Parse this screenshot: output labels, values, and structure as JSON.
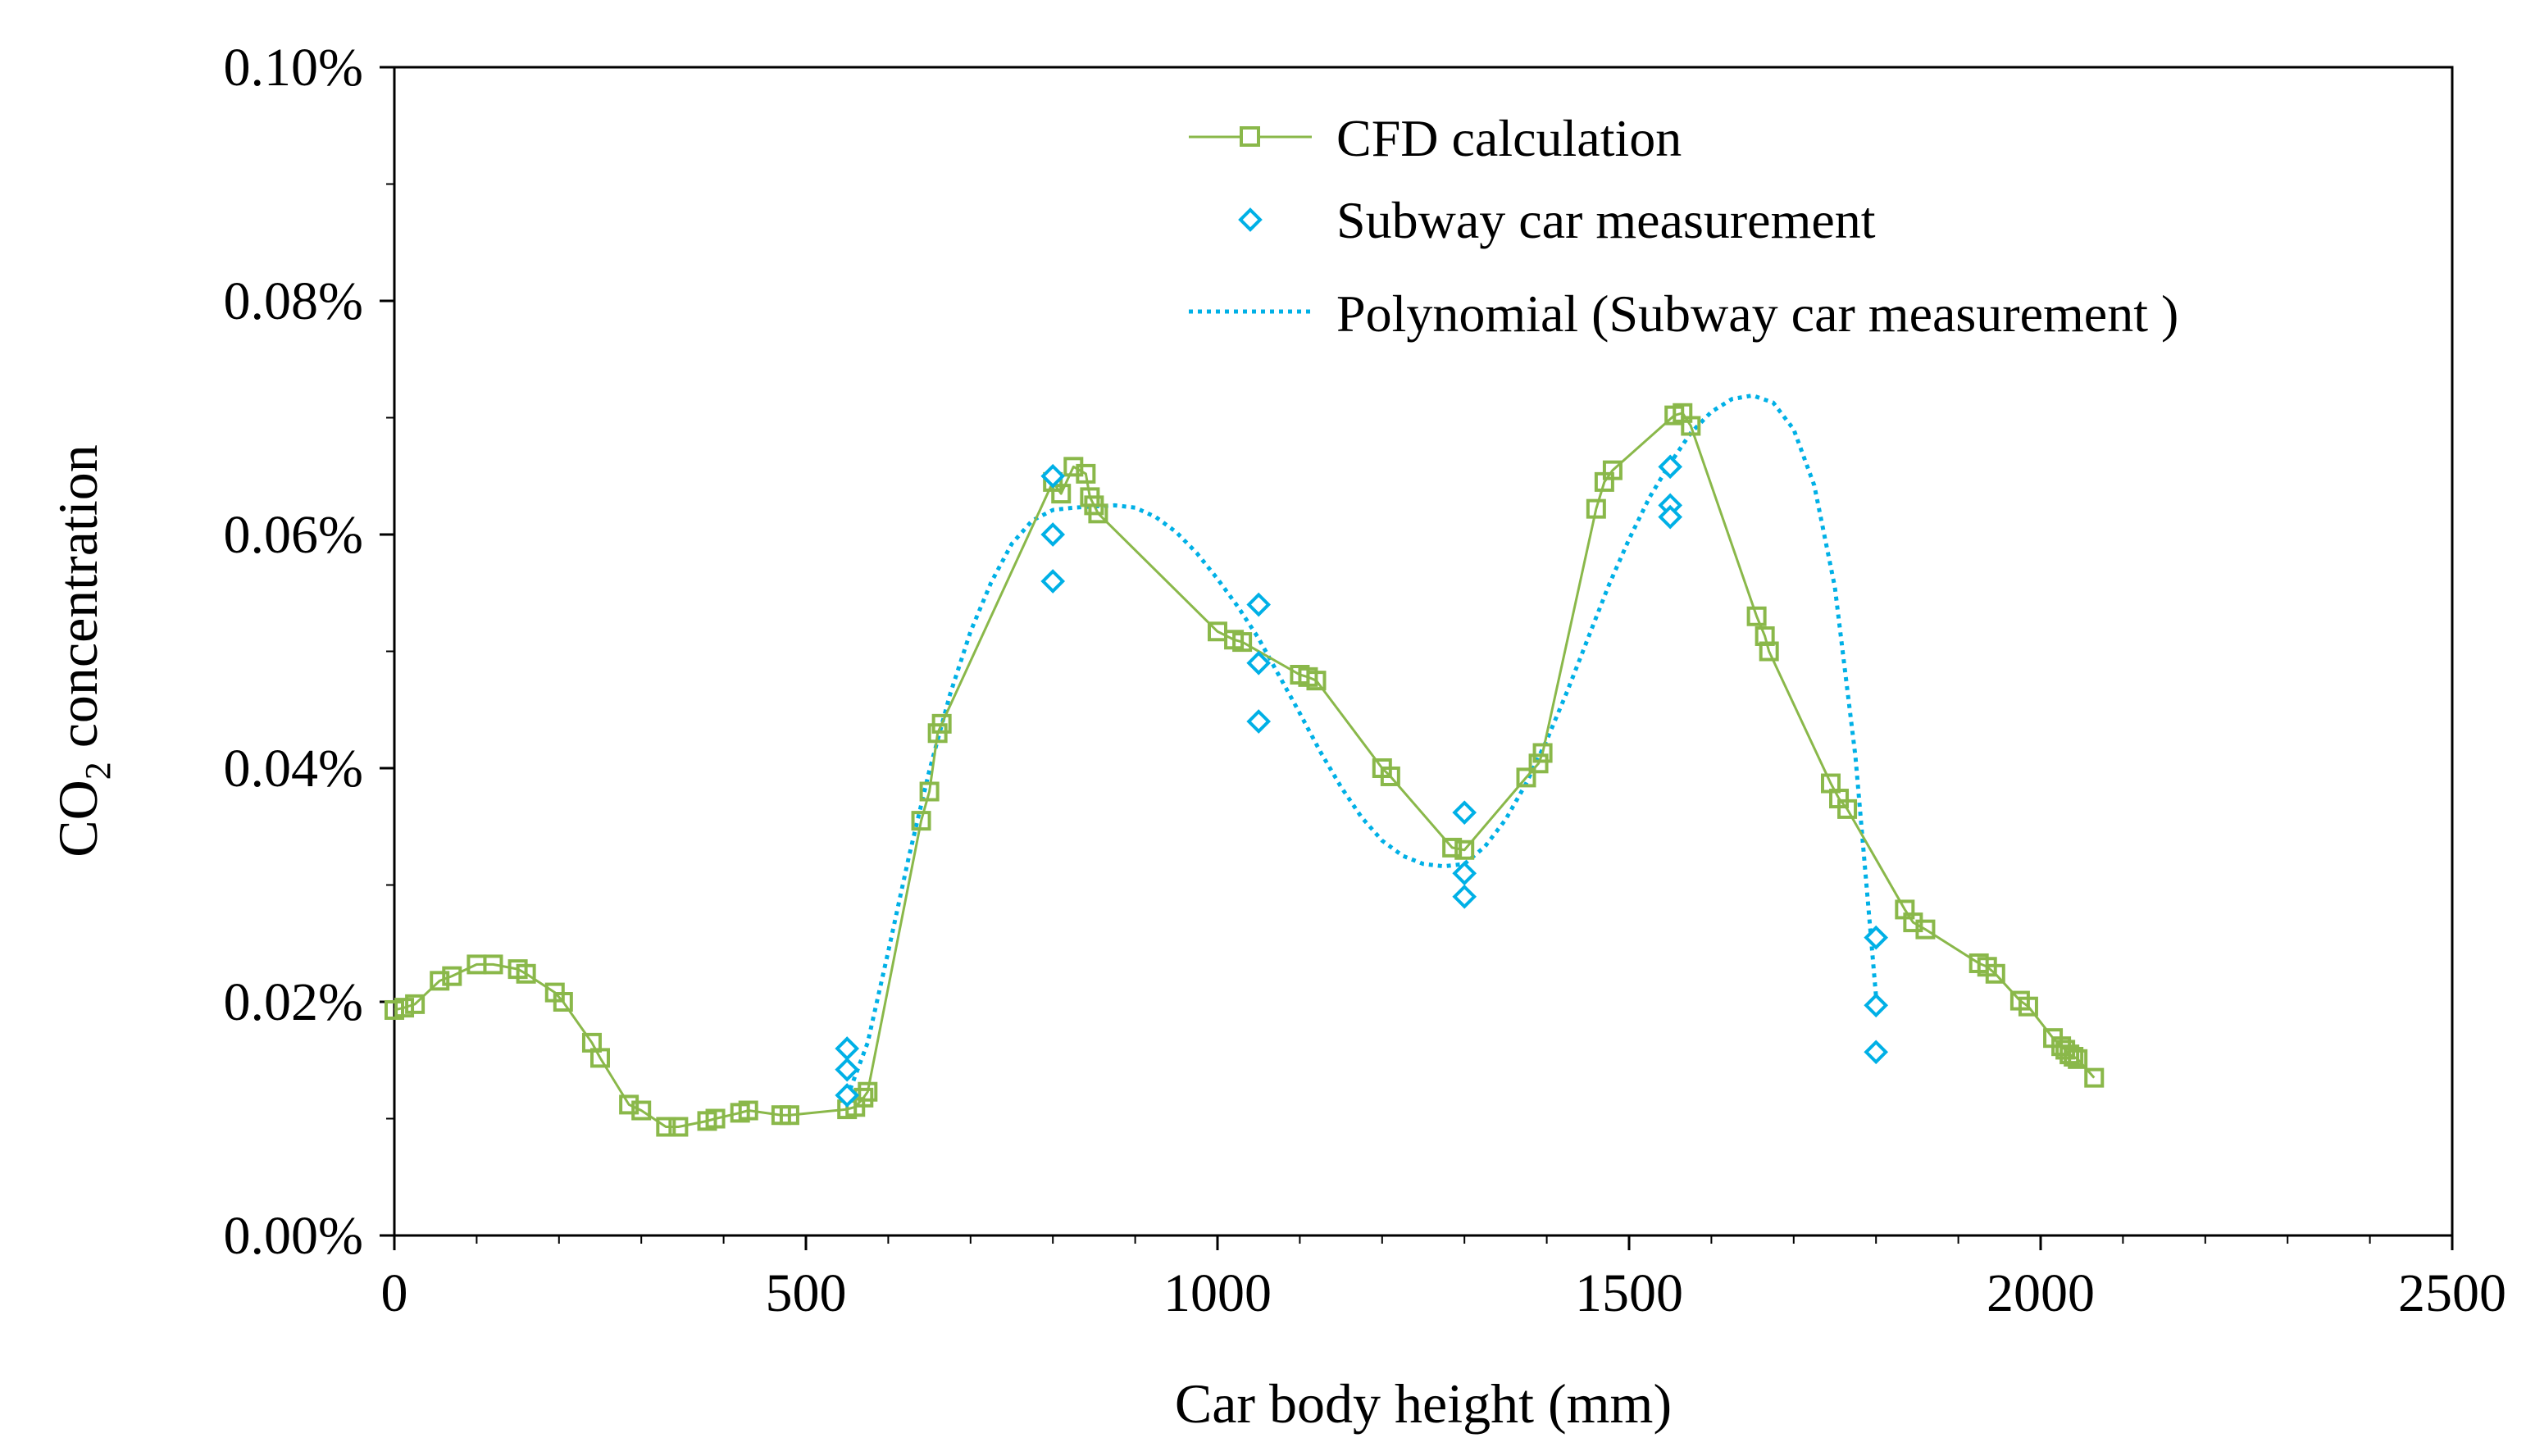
{
  "chart_data": {
    "type": "scatter",
    "title": "",
    "xlabel": "Car body height (mm)",
    "ylabel": "CO",
    "ylabel_subscript": "2",
    "ylabel_suffix": " concentration",
    "xlim": [
      0,
      2500
    ],
    "ylim": [
      0,
      0.001
    ],
    "grid": false,
    "legend_position": "top-right",
    "xticks": [
      0,
      500,
      1000,
      1500,
      2000,
      2500
    ],
    "xtick_labels": [
      "0",
      "500",
      "1000",
      "1500",
      "2000",
      "2500"
    ],
    "yticks": [
      0,
      0.0002,
      0.0004,
      0.0006,
      0.0008,
      0.001
    ],
    "ytick_labels": [
      "0.00%",
      "0.02%",
      "0.04%",
      "0.06%",
      "0.08%",
      "0.10%"
    ],
    "series": [
      {
        "name": "CFD calculation",
        "kind": "line-markers",
        "marker": "square",
        "color": "#8ab84a",
        "x": [
          0,
          12,
          25,
          55,
          70,
          100,
          120,
          150,
          160,
          195,
          205,
          240,
          250,
          285,
          300,
          330,
          345,
          380,
          390,
          420,
          430,
          470,
          480,
          550,
          560,
          570,
          575,
          640,
          650,
          660,
          665,
          800,
          810,
          825,
          840,
          845,
          850,
          855,
          1000,
          1020,
          1030,
          1100,
          1110,
          1120,
          1200,
          1210,
          1285,
          1300,
          1375,
          1390,
          1395,
          1460,
          1470,
          1480,
          1555,
          1565,
          1575,
          1655,
          1665,
          1670,
          1745,
          1755,
          1765,
          1835,
          1845,
          1860,
          1925,
          1935,
          1945,
          1975,
          1985,
          2015,
          2025,
          2030,
          2035,
          2040,
          2045,
          2065
        ],
        "values": [
          0.000193,
          0.000195,
          0.000198,
          0.000218,
          0.000222,
          0.000232,
          0.000232,
          0.000228,
          0.000224,
          0.000208,
          0.0002,
          0.000165,
          0.000152,
          0.000112,
          0.000107,
          9.3e-05,
          9.3e-05,
          9.8e-05,
          0.0001,
          0.000105,
          0.000107,
          0.000103,
          0.000103,
          0.000108,
          0.00011,
          0.000118,
          0.000123,
          0.000355,
          0.00038,
          0.00043,
          0.000438,
          0.000645,
          0.000635,
          0.000658,
          0.000652,
          0.000632,
          0.000625,
          0.000618,
          0.000517,
          0.00051,
          0.000508,
          0.00048,
          0.000478,
          0.000475,
          0.0004,
          0.000393,
          0.000332,
          0.00033,
          0.000392,
          0.000404,
          0.000413,
          0.000622,
          0.000645,
          0.000655,
          0.000702,
          0.000704,
          0.000693,
          0.00053,
          0.000513,
          0.0005,
          0.000387,
          0.000374,
          0.000365,
          0.000279,
          0.000268,
          0.000262,
          0.000233,
          0.00023,
          0.000224,
          0.000201,
          0.000196,
          0.000169,
          0.000162,
          0.000159,
          0.000155,
          0.000153,
          0.000151,
          0.000135
        ]
      },
      {
        "name": "Subway car measurement",
        "kind": "markers",
        "marker": "diamond",
        "color": "#00b0e6",
        "x": [
          550,
          550,
          550,
          800,
          800,
          800,
          1050,
          1050,
          1050,
          1300,
          1300,
          1300,
          1550,
          1550,
          1550,
          1800,
          1800,
          1800
        ],
        "values": [
          0.00016,
          0.000142,
          0.00012,
          0.00065,
          0.0006,
          0.00056,
          0.00054,
          0.00049,
          0.00044,
          0.000362,
          0.00031,
          0.00029,
          0.000658,
          0.000625,
          0.000615,
          0.000255,
          0.000197,
          0.000157
        ]
      },
      {
        "name": "Polynomial (Subway car measurement )",
        "kind": "trendline",
        "style": "dotted",
        "color": "#00b0e6",
        "x": [
          550,
          575,
          600,
          625,
          650,
          675,
          700,
          725,
          750,
          775,
          800,
          825,
          850,
          875,
          900,
          925,
          950,
          975,
          1000,
          1025,
          1050,
          1075,
          1100,
          1125,
          1150,
          1175,
          1200,
          1225,
          1250,
          1275,
          1300,
          1325,
          1350,
          1375,
          1400,
          1425,
          1450,
          1475,
          1500,
          1525,
          1550,
          1575,
          1600,
          1625,
          1650,
          1675,
          1700,
          1725,
          1750,
          1775,
          1800
        ],
        "values": [
          0.000118,
          0.000165,
          0.000243,
          0.000324,
          0.000398,
          0.000463,
          0.000517,
          0.000559,
          0.000592,
          0.000612,
          0.000621,
          0.000623,
          0.000624,
          0.000625,
          0.000623,
          0.000615,
          0.000602,
          0.000584,
          0.000562,
          0.000538,
          0.000511,
          0.000479,
          0.000447,
          0.000414,
          0.000384,
          0.000358,
          0.000338,
          0.000325,
          0.000318,
          0.000316,
          0.000318,
          0.000333,
          0.000356,
          0.000387,
          0.000424,
          0.000466,
          0.000511,
          0.000556,
          0.000596,
          0.000632,
          0.000661,
          0.000687,
          0.000705,
          0.000716,
          0.000719,
          0.000713,
          0.00069,
          0.000642,
          0.000555,
          0.00041,
          0.000205
        ]
      }
    ]
  }
}
